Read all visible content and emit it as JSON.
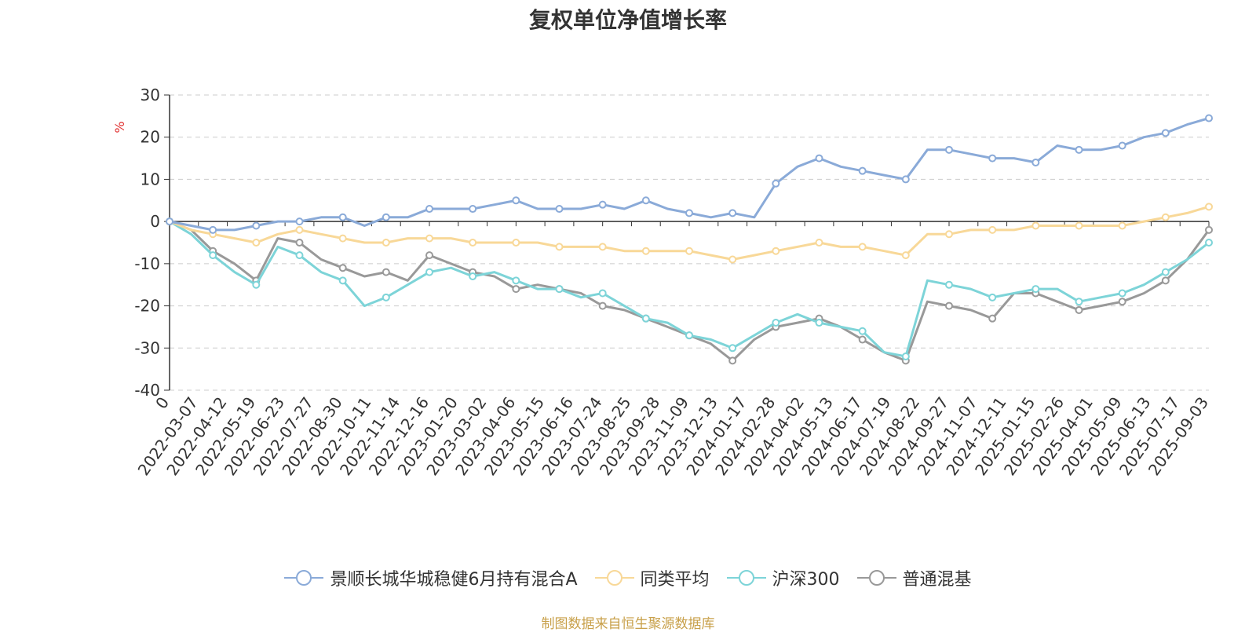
{
  "title": "复权单位净值增长率",
  "source": "制图数据来自恒生聚源数据库",
  "chart_data": {
    "type": "line",
    "ylabel": "%",
    "ylim": [
      -40,
      30
    ],
    "yticks": [
      30,
      20,
      10,
      0,
      -10,
      -20,
      -30,
      -40
    ],
    "grid": true,
    "legend_position": "bottom-center",
    "x_ticks": [
      "0",
      "2022-03-07",
      "2022-04-12",
      "2022-05-19",
      "2022-06-23",
      "2022-07-27",
      "2022-08-30",
      "2022-10-11",
      "2022-11-14",
      "2022-12-16",
      "2023-01-20",
      "2023-03-02",
      "2023-04-06",
      "2023-05-15",
      "2023-06-16",
      "2023-07-24",
      "2023-08-25",
      "2023-09-28",
      "2023-11-09",
      "2023-12-13",
      "2024-01-17",
      "2024-02-28",
      "2024-04-02",
      "2024-05-13",
      "2024-06-17",
      "2024-07-19",
      "2024-08-22",
      "2024-09-27",
      "2024-11-07",
      "2024-12-11",
      "2025-01-15",
      "2025-02-26",
      "2025-04-01",
      "2025-05-09",
      "2025-06-13",
      "2025-07-17",
      "2025-09-03"
    ],
    "series": [
      {
        "name": "景顺长城华城稳健6月持有混合A",
        "color": "#8aaad8",
        "values": [
          0,
          -1,
          -2,
          -2,
          -1,
          0,
          0,
          1,
          1,
          -1,
          1,
          1,
          3,
          3,
          3,
          4,
          5,
          3,
          3,
          3,
          4,
          3,
          5,
          3,
          2,
          1,
          2,
          1,
          9,
          13,
          15,
          13,
          12,
          11,
          10,
          17,
          17,
          16,
          15,
          15,
          14,
          18,
          17,
          17,
          18,
          20,
          21,
          23,
          24.5
        ]
      },
      {
        "name": "同类平均",
        "color": "#f8d898",
        "values": [
          0,
          -2,
          -3,
          -4,
          -5,
          -3,
          -2,
          -3,
          -4,
          -5,
          -5,
          -4,
          -4,
          -4,
          -5,
          -5,
          -5,
          -5,
          -6,
          -6,
          -6,
          -7,
          -7,
          -7,
          -7,
          -8,
          -9,
          -8,
          -7,
          -6,
          -5,
          -6,
          -6,
          -7,
          -8,
          -3,
          -3,
          -2,
          -2,
          -2,
          -1,
          -1,
          -1,
          -1,
          -1,
          0,
          1,
          2,
          3.5
        ]
      },
      {
        "name": "沪深300",
        "color": "#7dd4d8",
        "values": [
          0,
          -3,
          -8,
          -12,
          -15,
          -6,
          -8,
          -12,
          -14,
          -20,
          -18,
          -15,
          -12,
          -11,
          -13,
          -12,
          -14,
          -16,
          -16,
          -18,
          -17,
          -20,
          -23,
          -24,
          -27,
          -28,
          -30,
          -27,
          -24,
          -22,
          -24,
          -25,
          -26,
          -31,
          -32,
          -14,
          -15,
          -16,
          -18,
          -17,
          -16,
          -16,
          -19,
          -18,
          -17,
          -15,
          -12,
          -9,
          -5
        ]
      },
      {
        "name": "普通混基",
        "color": "#999999",
        "values": [
          0,
          -2,
          -7,
          -10,
          -14,
          -4,
          -5,
          -9,
          -11,
          -13,
          -12,
          -14,
          -8,
          -10,
          -12,
          -13,
          -16,
          -15,
          -16,
          -17,
          -20,
          -21,
          -23,
          -25,
          -27,
          -29,
          -33,
          -28,
          -25,
          -24,
          -23,
          -25,
          -28,
          -31,
          -33,
          -19,
          -20,
          -21,
          -23,
          -17,
          -17,
          -19,
          -21,
          -20,
          -19,
          -17,
          -14,
          -9,
          -2
        ]
      }
    ]
  }
}
